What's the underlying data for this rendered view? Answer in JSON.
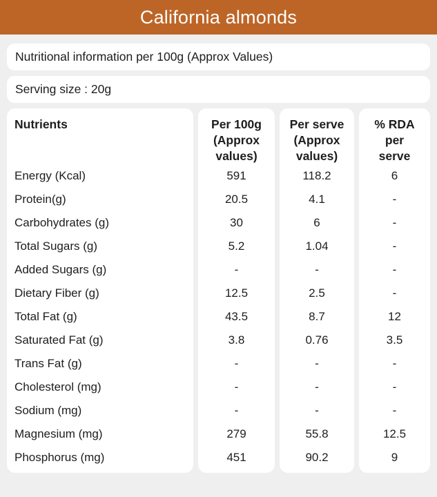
{
  "colors": {
    "accent": "#bd6527",
    "background": "#efefef",
    "card": "#ffffff",
    "text": "#1d1d1d",
    "title_text": "#ffffff"
  },
  "header": {
    "title": "California almonds"
  },
  "info_bars": [
    {
      "text": "Nutritional information per 100g (Approx Values)"
    },
    {
      "text": "Serving size : 20g"
    }
  ],
  "table": {
    "columns": [
      {
        "key": "name",
        "header": "Nutrients"
      },
      {
        "key": "per_100g",
        "header": "Per 100g\n(Approx\nvalues)"
      },
      {
        "key": "per_serve",
        "header": "Per serve\n(Approx\nvalues)"
      },
      {
        "key": "rda",
        "header": "% RDA\nper\nserve"
      }
    ],
    "rows": [
      {
        "name": "Energy (Kcal)",
        "per_100g": "591",
        "per_serve": "118.2",
        "rda": "6"
      },
      {
        "name": "Protein(g)",
        "per_100g": "20.5",
        "per_serve": "4.1",
        "rda": "-"
      },
      {
        "name": "Carbohydrates (g)",
        "per_100g": "30",
        "per_serve": "6",
        "rda": "-"
      },
      {
        "name": "Total Sugars (g)",
        "per_100g": "5.2",
        "per_serve": "1.04",
        "rda": "-"
      },
      {
        "name": "Added Sugars (g)",
        "per_100g": "-",
        "per_serve": "-",
        "rda": "-"
      },
      {
        "name": "Dietary Fiber (g)",
        "per_100g": "12.5",
        "per_serve": "2.5",
        "rda": "-"
      },
      {
        "name": "Total Fat (g)",
        "per_100g": "43.5",
        "per_serve": "8.7",
        "rda": "12"
      },
      {
        "name": "Saturated Fat (g)",
        "per_100g": "3.8",
        "per_serve": "0.76",
        "rda": "3.5"
      },
      {
        "name": "Trans Fat (g)",
        "per_100g": "-",
        "per_serve": "-",
        "rda": "-"
      },
      {
        "name": "Cholesterol (mg)",
        "per_100g": "-",
        "per_serve": "-",
        "rda": "-"
      },
      {
        "name": "Sodium (mg)",
        "per_100g": "-",
        "per_serve": "-",
        "rda": "-"
      },
      {
        "name": "Magnesium (mg)",
        "per_100g": "279",
        "per_serve": "55.8",
        "rda": "12.5"
      },
      {
        "name": "Phosphorus (mg)",
        "per_100g": "451",
        "per_serve": "90.2",
        "rda": "9"
      }
    ]
  }
}
